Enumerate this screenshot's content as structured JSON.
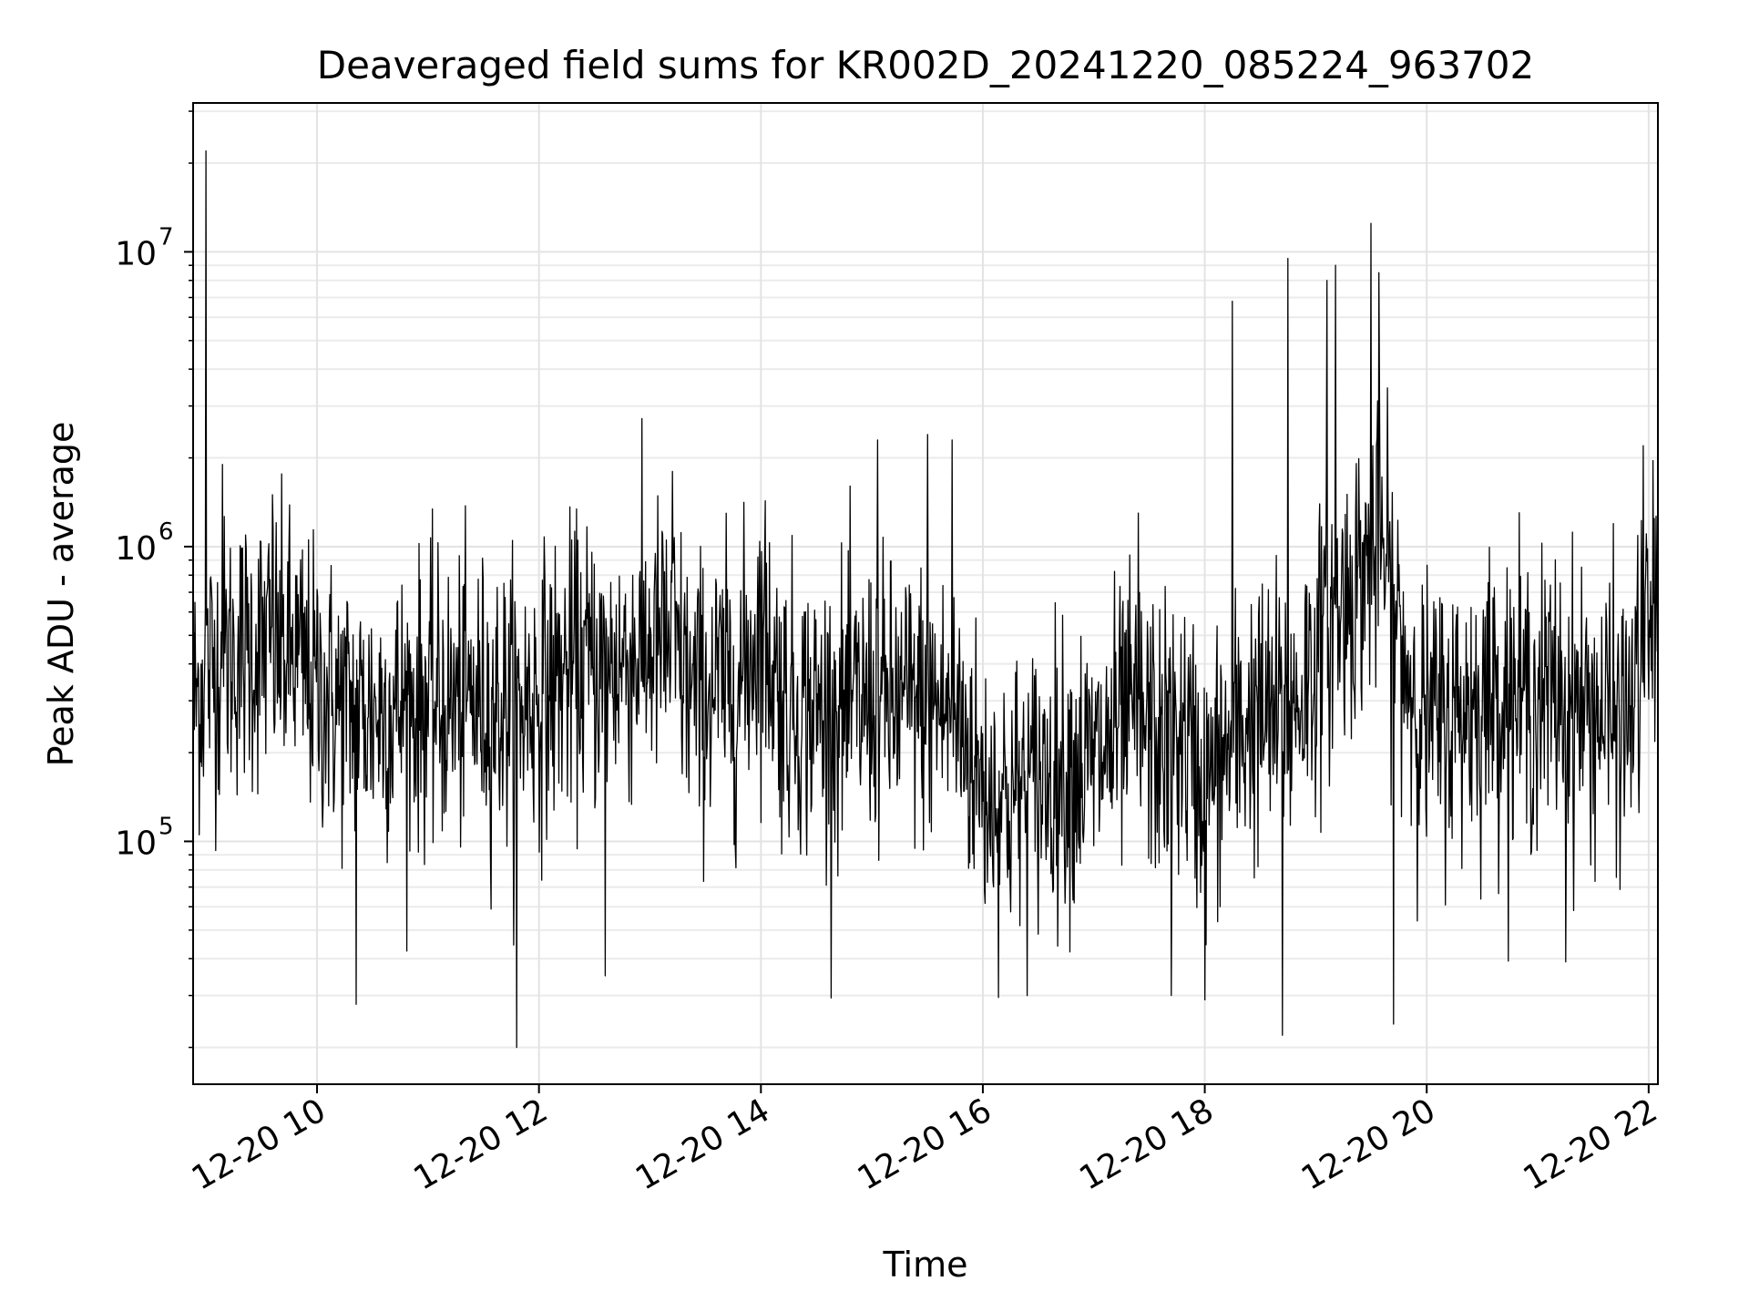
{
  "chart_data": {
    "type": "line",
    "title": "Deaveraged field sums for KR002D_20241220_085224_963702",
    "xlabel": "Time",
    "ylabel": "Peak ADU - average",
    "xlim": [
      "2024-12-20 08:53",
      "2024-12-20 22:05"
    ],
    "ylim": [
      15000,
      32000000
    ],
    "yscale": "log",
    "grid": true,
    "line_color": "#000000",
    "x_ticks": [
      {
        "t": 10,
        "label": "12-20 10"
      },
      {
        "t": 12,
        "label": "12-20 12"
      },
      {
        "t": 14,
        "label": "12-20 14"
      },
      {
        "t": 16,
        "label": "12-20 16"
      },
      {
        "t": 18,
        "label": "12-20 18"
      },
      {
        "t": 20,
        "label": "12-20 20"
      },
      {
        "t": 22,
        "label": "12-20 22"
      }
    ],
    "y_ticks": [
      {
        "value": 100000,
        "base": "10",
        "exp": "5"
      },
      {
        "value": 1000000,
        "base": "10",
        "exp": "6"
      },
      {
        "value": 10000000,
        "base": "10",
        "exp": "7"
      }
    ],
    "series": [
      {
        "x_hours": [
          8.9,
          9.0,
          9.2,
          9.4,
          9.6,
          9.8,
          10.0,
          10.2,
          10.4,
          10.6,
          10.8,
          11.0,
          11.2,
          11.4,
          11.6,
          11.8,
          12.0,
          12.2,
          12.4,
          12.6,
          12.8,
          13.0,
          13.2,
          13.4,
          13.6,
          13.8,
          14.0,
          14.2,
          14.4,
          14.6,
          14.8,
          15.0,
          15.2,
          15.4,
          15.6,
          15.8,
          16.0,
          16.2,
          16.4,
          16.6,
          16.8,
          17.0,
          17.2,
          17.4,
          17.6,
          17.8,
          18.0,
          18.2,
          18.4,
          18.6,
          18.8,
          19.0,
          19.2,
          19.4,
          19.6,
          19.8,
          20.0,
          20.2,
          20.4,
          20.6,
          20.8,
          21.0,
          21.2,
          21.4,
          21.6,
          21.8,
          22.0,
          22.08
        ],
        "median": [
          300000,
          380000,
          420000,
          450000,
          460000,
          420000,
          330000,
          290000,
          270000,
          280000,
          290000,
          300000,
          290000,
          300000,
          290000,
          290000,
          310000,
          360000,
          400000,
          380000,
          420000,
          460000,
          470000,
          300000,
          340000,
          330000,
          560000,
          300000,
          280000,
          270000,
          280000,
          300000,
          290000,
          300000,
          290000,
          250000,
          150000,
          140000,
          150000,
          170000,
          180000,
          180000,
          230000,
          270000,
          210000,
          230000,
          150000,
          200000,
          260000,
          260000,
          280000,
          420000,
          600000,
          800000,
          1000000,
          400000,
          250000,
          260000,
          290000,
          320000,
          310000,
          300000,
          320000,
          280000,
          270000,
          250000,
          520000,
          620000
        ],
        "peaks": [
          {
            "x": 9.0,
            "y": 22000000
          },
          {
            "x": 9.15,
            "y": 1900000
          },
          {
            "x": 9.6,
            "y": 1500000
          },
          {
            "x": 13.2,
            "y": 1800000
          },
          {
            "x": 15.05,
            "y": 2300000
          },
          {
            "x": 15.5,
            "y": 2400000
          },
          {
            "x": 15.72,
            "y": 2300000
          },
          {
            "x": 17.4,
            "y": 1300000
          },
          {
            "x": 18.25,
            "y": 6800000
          },
          {
            "x": 18.75,
            "y": 9500000
          },
          {
            "x": 19.1,
            "y": 8000000
          },
          {
            "x": 19.18,
            "y": 9000000
          },
          {
            "x": 19.5,
            "y": 12500000
          },
          {
            "x": 19.57,
            "y": 8500000
          },
          {
            "x": 21.95,
            "y": 2200000
          }
        ],
        "dips": [
          {
            "x": 10.35,
            "y": 28000
          },
          {
            "x": 11.8,
            "y": 20000
          },
          {
            "x": 12.6,
            "y": 35000
          },
          {
            "x": 17.7,
            "y": 30000
          },
          {
            "x": 18.0,
            "y": 29000
          },
          {
            "x": 18.7,
            "y": 22000
          },
          {
            "x": 19.7,
            "y": 24000
          },
          {
            "x": 21.25,
            "y": 39000
          }
        ]
      }
    ]
  }
}
